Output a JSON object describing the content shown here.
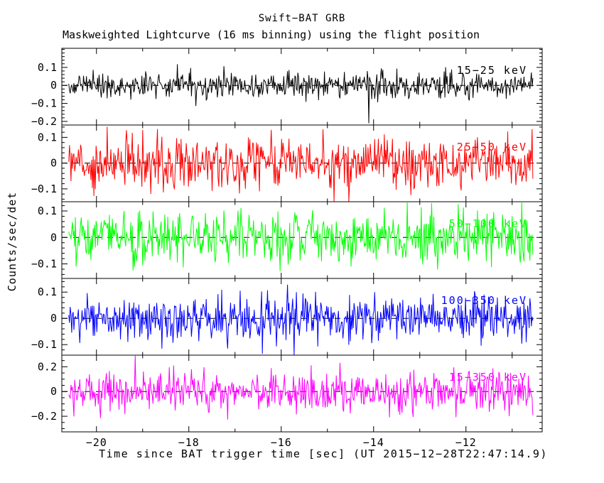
{
  "title": "Swift−BAT GRB",
  "subtitle": "Maskweighted Lightcurve (16 ms binning) using the flight position",
  "xlabel": "Time since BAT trigger time [sec] (UT 2015−12−28T22:47:14.9)",
  "ylabel": "Counts/sec/det",
  "chart_data": {
    "type": "line",
    "description": "Five stacked mask-weighted lightcurve panels of zero-mean noise, one per energy band, 16 ms bins, dashed zero line in each panel",
    "x_range": [
      -20.75,
      -10.35
    ],
    "data_t_start": -20.6,
    "data_t_end": -10.55,
    "bin_seconds": 0.016,
    "x_major_ticks": [
      {
        "value": -20,
        "label": "−20"
      },
      {
        "value": -18,
        "label": "−18"
      },
      {
        "value": -16,
        "label": "−16"
      },
      {
        "value": -14,
        "label": "−14"
      },
      {
        "value": -12,
        "label": "−12"
      }
    ],
    "x_minor_step_seconds": 1,
    "grid": false,
    "zero_line_style": "dashed-black",
    "background": "#ffffff",
    "frame_color": "#000000",
    "panels": [
      {
        "label": "15−25 keV",
        "color": "#000000",
        "y_range": [
          -0.22,
          0.206
        ],
        "y_major_ticks": [
          {
            "value": 0.1,
            "label": "0.1"
          },
          {
            "value": 0,
            "label": "0"
          },
          {
            "value": -0.1,
            "label": "−0.1"
          },
          {
            "value": -0.2,
            "label": "−0.2"
          }
        ],
        "y_minor_step": 0.02,
        "noise_mean": 0,
        "noise_sigma": 0.036,
        "seed": 20151228,
        "outliers": [
          {
            "t": -14.1,
            "v": -0.21
          }
        ]
      },
      {
        "label": "25−50 keV",
        "color": "#ff0000",
        "y_range": [
          -0.15,
          0.148
        ],
        "y_major_ticks": [
          {
            "value": 0.1,
            "label": "0.1"
          },
          {
            "value": 0,
            "label": "0"
          },
          {
            "value": -0.1,
            "label": "−0.1"
          }
        ],
        "y_minor_step": 0.02,
        "noise_mean": 0,
        "noise_sigma": 0.05,
        "seed": 228,
        "outliers": []
      },
      {
        "label": "50−100 keV",
        "color": "#00ff00",
        "y_range": [
          -0.155,
          0.135
        ],
        "y_major_ticks": [
          {
            "value": 0.1,
            "label": "0.1"
          },
          {
            "value": 0,
            "label": "0"
          },
          {
            "value": -0.1,
            "label": "−0.1"
          }
        ],
        "y_minor_step": 0.02,
        "noise_mean": 0,
        "noise_sigma": 0.048,
        "seed": 4747,
        "outliers": []
      },
      {
        "label": "100−350 keV",
        "color": "#0000ff",
        "y_range": [
          -0.14,
          0.152
        ],
        "y_major_ticks": [
          {
            "value": 0.1,
            "label": "0.1"
          },
          {
            "value": 0,
            "label": "0"
          },
          {
            "value": -0.1,
            "label": "−0.1"
          }
        ],
        "y_minor_step": 0.02,
        "noise_mean": 0,
        "noise_sigma": 0.045,
        "seed": 1412,
        "outliers": []
      },
      {
        "label": "15−350 keV",
        "color": "#ff00ff",
        "y_range": [
          -0.326,
          0.294
        ],
        "y_major_ticks": [
          {
            "value": 0.2,
            "label": "0.2"
          },
          {
            "value": 0,
            "label": "0"
          },
          {
            "value": -0.2,
            "label": "−0.2"
          }
        ],
        "y_minor_step": 0.05,
        "noise_mean": 0,
        "noise_sigma": 0.082,
        "seed": 350,
        "outliers": []
      }
    ]
  }
}
